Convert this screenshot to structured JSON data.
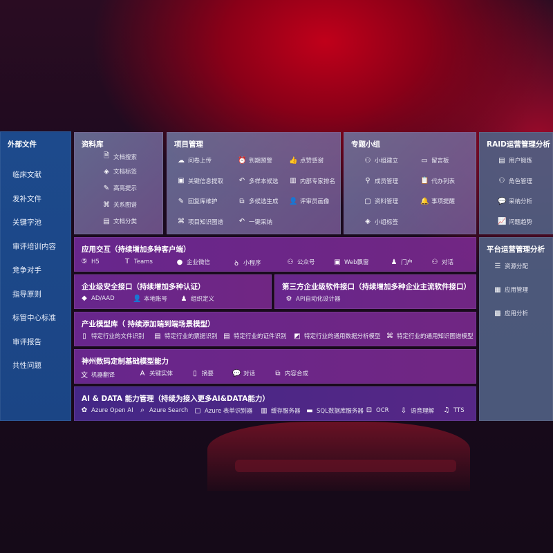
{
  "sidebar": {
    "title": "外部文件",
    "items": [
      "临床文献",
      "发补文件",
      "关键字池",
      "审评培训内容",
      "竞争对手",
      "指导原则",
      "标管中心标准",
      "审评报告",
      "共性问题"
    ]
  },
  "panels": [
    {
      "id": "library",
      "title": "资料库",
      "items": [
        {
          "label": "文档搜索",
          "icon": "doc-search"
        },
        {
          "label": "文档标签",
          "icon": "tag"
        },
        {
          "label": "高亮提示",
          "icon": "pen"
        },
        {
          "label": "关系图谱",
          "icon": "graph"
        },
        {
          "label": "文档分类",
          "icon": "doc-category"
        }
      ]
    },
    {
      "id": "project",
      "title": "项目管理",
      "items": [
        {
          "label": "问卷上传",
          "icon": "cloud-upload"
        },
        {
          "label": "到期预警",
          "icon": "alarm"
        },
        {
          "label": "点赞感谢",
          "icon": "thumbs-up"
        },
        {
          "label": "关键信息提取",
          "icon": "window"
        },
        {
          "label": "多样本候选",
          "icon": "reply"
        },
        {
          "label": "内部专家排名",
          "icon": "ranking"
        },
        {
          "label": "回复库维护",
          "icon": "edit"
        },
        {
          "label": "多候选生成",
          "icon": "puzzle"
        },
        {
          "label": "评审员画像",
          "icon": "user"
        },
        {
          "label": "项目知识图谱",
          "icon": "graph"
        },
        {
          "label": "一键采纳",
          "icon": "reply"
        }
      ]
    },
    {
      "id": "group",
      "title": "专题小组",
      "items": [
        {
          "label": "小组建立",
          "icon": "users"
        },
        {
          "label": "留言板",
          "icon": "bbs"
        },
        {
          "label": "成员管理",
          "icon": "user-add"
        },
        {
          "label": "代办列表",
          "icon": "clipboard"
        },
        {
          "label": "资料管理",
          "icon": "folder"
        },
        {
          "label": "事项提醒",
          "icon": "bell"
        },
        {
          "label": "小组标签",
          "icon": "tag"
        }
      ]
    },
    {
      "id": "raid",
      "title": "RAID运营管理分析",
      "items": [
        {
          "label": "用户锻炼",
          "icon": "id-card"
        },
        {
          "label": "角色管理",
          "icon": "users"
        },
        {
          "label": "采纳分析",
          "icon": "qa"
        },
        {
          "label": "问题趋势",
          "icon": "trend"
        }
      ]
    },
    {
      "id": "platform",
      "title": "平台运营管理分析",
      "items": [
        {
          "label": "资源分配",
          "icon": "list"
        },
        {
          "label": "应用管理",
          "icon": "apps"
        },
        {
          "label": "应用分析",
          "icon": "analysis"
        }
      ]
    },
    {
      "id": "interaction",
      "title": "应用交互（持续增加多种客户端）",
      "items": [
        {
          "label": "H5",
          "icon": "html5"
        },
        {
          "label": "Teams",
          "icon": "teams"
        },
        {
          "label": "企业微信",
          "icon": "wechat-work"
        },
        {
          "label": "小程序",
          "icon": "mini-program"
        },
        {
          "label": "公众号",
          "icon": "users"
        },
        {
          "label": "Web飘窗",
          "icon": "window"
        },
        {
          "label": "门户",
          "icon": "portal"
        },
        {
          "label": "对话",
          "icon": "chat-users"
        }
      ]
    },
    {
      "id": "security",
      "title": "企业级安全接口（持续增加多种认证）",
      "items": [
        {
          "label": "AD/AAD",
          "icon": "diamond"
        },
        {
          "label": "本地账号",
          "icon": "user"
        },
        {
          "label": "组织定义",
          "icon": "org"
        }
      ]
    },
    {
      "id": "thirdparty",
      "title": "第三方企业级软件接口（持续增加多种企业主流软件接口）",
      "items": [
        {
          "label": "API自动化设计器",
          "icon": "gear"
        }
      ]
    },
    {
      "id": "industry",
      "title": "产业模型库（ 持续添加端到端场景模型）",
      "items": [
        {
          "label": "特定行业的文件识别",
          "icon": "doc"
        },
        {
          "label": "特定行业的票据识别",
          "icon": "receipt"
        },
        {
          "label": "特定行业的证件识别",
          "icon": "id-card"
        },
        {
          "label": "特定行业的通用数据分析模型",
          "icon": "chart"
        },
        {
          "label": "特定行业的通用知识图谱模型",
          "icon": "graph"
        }
      ]
    },
    {
      "id": "base",
      "title": "神州数码定制基础模型能力",
      "items": [
        {
          "label": "机器翻译",
          "icon": "translate"
        },
        {
          "label": "关键实体",
          "icon": "entity"
        },
        {
          "label": "摘要",
          "icon": "doc"
        },
        {
          "label": "对话",
          "icon": "chat"
        },
        {
          "label": "内容合成",
          "icon": "puzzle"
        }
      ]
    },
    {
      "id": "aidata",
      "title": "AI & DATA 能力管理（持续为接入更多AI&DATA能力）",
      "items": [
        {
          "label": "Azure Open AI",
          "icon": "openai"
        },
        {
          "label": "Azure Search",
          "icon": "search"
        },
        {
          "label": "Azure 表单识别器",
          "icon": "form"
        },
        {
          "label": "缓存服务器",
          "icon": "cache"
        },
        {
          "label": "SQL数据库服务器",
          "icon": "database"
        },
        {
          "label": "OCR",
          "icon": "ocr"
        },
        {
          "label": "语音理解",
          "icon": "speech"
        },
        {
          "label": "TTS",
          "icon": "tts"
        }
      ]
    }
  ]
}
